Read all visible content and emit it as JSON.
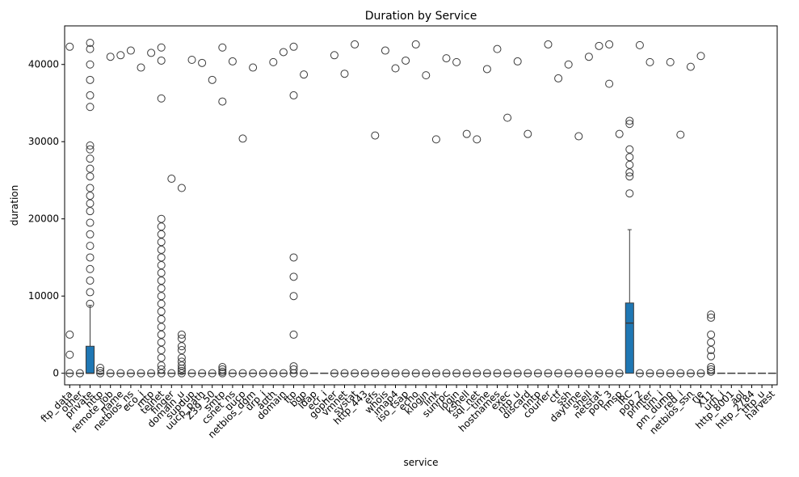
{
  "chart_data": {
    "type": "box",
    "title": "Duration by Service",
    "xlabel": "service",
    "ylabel": "duration",
    "ylim": [
      -1500,
      45000
    ],
    "yticks": [
      0,
      10000,
      20000,
      30000,
      40000
    ],
    "box_color": "#1f77b4",
    "categories": [
      "ftp_data",
      "other",
      "private",
      "http",
      "remote_job",
      "name",
      "netbios_ns",
      "eco_i",
      "mtp",
      "telnet",
      "finger",
      "domain_u",
      "supdup",
      "uucp_path",
      "Z39_50",
      "smtp",
      "csnet_ns",
      "uucp",
      "netbios_dgm",
      "urp_i",
      "auth",
      "domain",
      "ftp",
      "bgp",
      "ldap",
      "ecr_i",
      "gopher",
      "vmnet",
      "systat",
      "http_443",
      "efs",
      "whois",
      "imap4",
      "iso_tsap",
      "echo",
      "klogin",
      "link",
      "sunrpc",
      "login",
      "kshell",
      "sql_net",
      "time",
      "hostnames",
      "exec",
      "ntp_u",
      "discard",
      "nntp",
      "courier",
      "ctf",
      "ssh",
      "daytime",
      "shell",
      "netstat",
      "pop_3",
      "nnsp",
      "IRC",
      "pop_2",
      "printer",
      "tim_i",
      "pm_dump",
      "red_i",
      "netbios_ssn",
      "rje",
      "X11",
      "urh_i",
      "http_8001",
      "aol",
      "http_2784",
      "tftp_u",
      "harvest"
    ],
    "boxes": [
      {
        "category": "private",
        "q1": 0,
        "median": 0,
        "q3": 3500,
        "whisker_low": 0,
        "whisker_high": 8800
      },
      {
        "category": "IRC",
        "q1": 0,
        "median": 6500,
        "q3": 9100,
        "whisker_low": 0,
        "whisker_high": 18600
      }
    ],
    "outliers": [
      {
        "category": "ftp_data",
        "values": [
          0,
          2400,
          5000,
          42300
        ]
      },
      {
        "category": "other",
        "values": [
          0
        ]
      },
      {
        "category": "private",
        "values": [
          9000,
          10500,
          12000,
          13500,
          15000,
          16500,
          18000,
          19500,
          21000,
          22000,
          23000,
          24000,
          25500,
          26500,
          27800,
          29000,
          29500,
          34500,
          36000,
          38000,
          40000,
          42000,
          42800
        ]
      },
      {
        "category": "http",
        "values": [
          0,
          300,
          700
        ]
      },
      {
        "category": "remote_job",
        "values": [
          0,
          41000
        ]
      },
      {
        "category": "name",
        "values": [
          0,
          41200
        ]
      },
      {
        "category": "netbios_ns",
        "values": [
          0,
          41800
        ]
      },
      {
        "category": "eco_i",
        "values": [
          0,
          39600
        ]
      },
      {
        "category": "mtp",
        "values": [
          0,
          41500
        ]
      },
      {
        "category": "telnet",
        "values": [
          0,
          500,
          1000,
          2000,
          3000,
          4000,
          5000,
          6000,
          7000,
          8000,
          9000,
          10000,
          11000,
          12000,
          13000,
          14000,
          15000,
          16000,
          17000,
          18000,
          19000,
          20000,
          35600,
          40500,
          42200
        ]
      },
      {
        "category": "finger",
        "values": [
          0,
          25200
        ]
      },
      {
        "category": "domain_u",
        "values": [
          0,
          300,
          600,
          1000,
          1500,
          2000,
          3000,
          3500,
          4500,
          5000,
          24000
        ]
      },
      {
        "category": "supdup",
        "values": [
          0,
          40600
        ]
      },
      {
        "category": "uucp_path",
        "values": [
          0,
          40200
        ]
      },
      {
        "category": "Z39_50",
        "values": [
          0,
          38000
        ]
      },
      {
        "category": "smtp",
        "values": [
          0,
          200,
          500,
          800,
          35200,
          42200
        ]
      },
      {
        "category": "csnet_ns",
        "values": [
          0,
          40400
        ]
      },
      {
        "category": "uucp",
        "values": [
          0,
          30400
        ]
      },
      {
        "category": "netbios_dgm",
        "values": [
          0,
          39600
        ]
      },
      {
        "category": "urp_i",
        "values": [
          0
        ]
      },
      {
        "category": "auth",
        "values": [
          0,
          40300
        ]
      },
      {
        "category": "domain",
        "values": [
          0,
          41600
        ]
      },
      {
        "category": "ftp",
        "values": [
          0,
          500,
          900,
          5000,
          10000,
          12500,
          15000,
          36000,
          42300
        ]
      },
      {
        "category": "bgp",
        "values": [
          0,
          38700
        ]
      },
      {
        "category": "gopher",
        "values": [
          0,
          41200
        ]
      },
      {
        "category": "vmnet",
        "values": [
          0,
          38800
        ]
      },
      {
        "category": "systat",
        "values": [
          0,
          42600
        ]
      },
      {
        "category": "http_443",
        "values": [
          0
        ]
      },
      {
        "category": "efs",
        "values": [
          0,
          30800
        ]
      },
      {
        "category": "whois",
        "values": [
          0,
          41800
        ]
      },
      {
        "category": "imap4",
        "values": [
          0,
          39500
        ]
      },
      {
        "category": "iso_tsap",
        "values": [
          0,
          40500
        ]
      },
      {
        "category": "echo",
        "values": [
          0,
          42600
        ]
      },
      {
        "category": "klogin",
        "values": [
          0,
          38600
        ]
      },
      {
        "category": "link",
        "values": [
          0,
          30300
        ]
      },
      {
        "category": "sunrpc",
        "values": [
          0,
          40800
        ]
      },
      {
        "category": "login",
        "values": [
          0,
          40300
        ]
      },
      {
        "category": "kshell",
        "values": [
          0,
          31000
        ]
      },
      {
        "category": "sql_net",
        "values": [
          0,
          30300
        ]
      },
      {
        "category": "time",
        "values": [
          0,
          39400
        ]
      },
      {
        "category": "hostnames",
        "values": [
          0,
          42000
        ]
      },
      {
        "category": "exec",
        "values": [
          0,
          33100
        ]
      },
      {
        "category": "ntp_u",
        "values": [
          0,
          40400
        ]
      },
      {
        "category": "discard",
        "values": [
          0,
          31000
        ]
      },
      {
        "category": "nntp",
        "values": [
          0
        ]
      },
      {
        "category": "courier",
        "values": [
          0,
          42600
        ]
      },
      {
        "category": "ctf",
        "values": [
          0,
          38200
        ]
      },
      {
        "category": "ssh",
        "values": [
          0,
          40000
        ]
      },
      {
        "category": "daytime",
        "values": [
          0,
          30700
        ]
      },
      {
        "category": "shell",
        "values": [
          0,
          41000
        ]
      },
      {
        "category": "netstat",
        "values": [
          0,
          42400
        ]
      },
      {
        "category": "pop_3",
        "values": [
          0,
          37500,
          42600
        ]
      },
      {
        "category": "nnsp",
        "values": [
          0,
          31000
        ]
      },
      {
        "category": "IRC",
        "values": [
          23300,
          25500,
          26000,
          27000,
          28000,
          29000,
          32300,
          32700
        ]
      },
      {
        "category": "pop_2",
        "values": [
          0,
          42500
        ]
      },
      {
        "category": "printer",
        "values": [
          0,
          40300
        ]
      },
      {
        "category": "tim_i",
        "values": [
          0
        ]
      },
      {
        "category": "pm_dump",
        "values": [
          0,
          40300
        ]
      },
      {
        "category": "red_i",
        "values": [
          0,
          30900
        ]
      },
      {
        "category": "netbios_ssn",
        "values": [
          0,
          39700
        ]
      },
      {
        "category": "rje",
        "values": [
          0,
          41100
        ]
      },
      {
        "category": "X11",
        "values": [
          200,
          500,
          800,
          2200,
          3000,
          4000,
          5000,
          7200,
          7600
        ]
      }
    ]
  }
}
